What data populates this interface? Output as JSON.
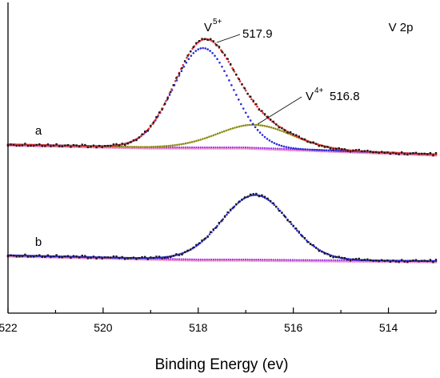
{
  "chart_data": {
    "type": "scatter",
    "title": "",
    "xlabel": "Binding Energy (ev)",
    "ylabel": "",
    "xlim": [
      522,
      513
    ],
    "x_reversed": true,
    "x_ticks": [
      522,
      520,
      518,
      516,
      514
    ],
    "y_axis_ticks": false,
    "panel_label": "V 2p",
    "spectra": [
      {
        "label": "a",
        "series": [
          {
            "name": "raw",
            "color": "#1a1a1a",
            "marker": "square"
          },
          {
            "name": "fit",
            "color": "#e83030"
          },
          {
            "name": "V5+ component",
            "color": "#2a2ad8"
          },
          {
            "name": "V4+ component",
            "color": "#8c8c14"
          },
          {
            "name": "background",
            "color": "#9b30e6"
          },
          {
            "name": "background-2",
            "color": "#f08cc8"
          }
        ],
        "peaks": [
          {
            "ion": "V",
            "charge": "5+",
            "position": 517.9,
            "position_label": "517.9",
            "relative_height": 1.0
          },
          {
            "ion": "V",
            "charge": "4+",
            "position": 516.8,
            "position_label": "516.8",
            "relative_height": 0.23
          }
        ]
      },
      {
        "label": "b",
        "series": [
          {
            "name": "raw",
            "color": "#1a1a1a",
            "marker": "square"
          },
          {
            "name": "fit",
            "color": "#2a2ad8"
          },
          {
            "name": "background",
            "color": "#9b30e6"
          },
          {
            "name": "background-2",
            "color": "#f08cc8"
          }
        ],
        "peaks": [
          {
            "position": 516.8,
            "relative_height": 0.65
          }
        ]
      }
    ]
  }
}
